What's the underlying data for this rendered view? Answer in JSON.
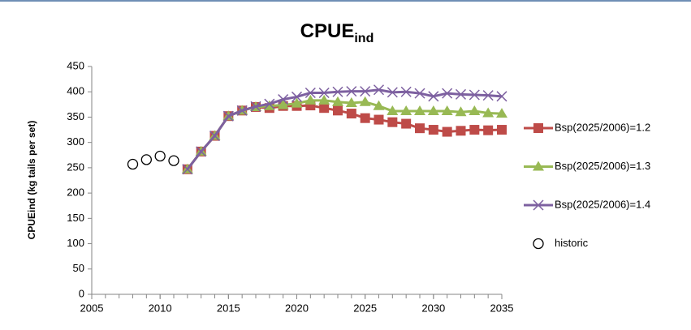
{
  "chart_data": {
    "type": "line",
    "title": "CPUE",
    "title_subscript": "ind",
    "y_label": "CPUEind (kg tails per set)",
    "xlim": [
      2005,
      2035
    ],
    "xticks": [
      2005,
      2010,
      2015,
      2020,
      2025,
      2030,
      2035
    ],
    "ylim": [
      0,
      450
    ],
    "yticks": [
      0,
      50,
      100,
      150,
      200,
      250,
      300,
      350,
      400,
      450
    ],
    "grid": false,
    "legend": "right",
    "series": [
      {
        "name": "Bsp(2025/2006)=1.2",
        "color": "#be4b48",
        "marker": "square",
        "line": true,
        "x": [
          2012,
          2013,
          2014,
          2015,
          2016,
          2017,
          2018,
          2019,
          2020,
          2021,
          2022,
          2023,
          2024,
          2025,
          2026,
          2027,
          2028,
          2029,
          2030,
          2031,
          2032,
          2033,
          2034,
          2035
        ],
        "values": [
          247,
          282,
          313,
          352,
          363,
          370,
          368,
          372,
          372,
          373,
          368,
          363,
          357,
          348,
          345,
          340,
          337,
          328,
          325,
          321,
          323,
          325,
          324,
          325
        ]
      },
      {
        "name": "Bsp(2025/2006)=1.3",
        "color": "#98b954",
        "marker": "triangle",
        "line": true,
        "x": [
          2012,
          2013,
          2014,
          2015,
          2016,
          2017,
          2018,
          2019,
          2020,
          2021,
          2022,
          2023,
          2024,
          2025,
          2026,
          2027,
          2028,
          2029,
          2030,
          2031,
          2032,
          2033,
          2034,
          2035
        ],
        "values": [
          247,
          282,
          313,
          352,
          363,
          370,
          372,
          374,
          377,
          383,
          383,
          380,
          378,
          380,
          372,
          362,
          362,
          362,
          362,
          362,
          360,
          362,
          358,
          357
        ]
      },
      {
        "name": "Bsp(2025/2006)=1.4",
        "color": "#7d60a0",
        "marker": "cross",
        "line": true,
        "x": [
          2012,
          2013,
          2014,
          2015,
          2016,
          2017,
          2018,
          2019,
          2020,
          2021,
          2022,
          2023,
          2024,
          2025,
          2026,
          2027,
          2028,
          2029,
          2030,
          2031,
          2032,
          2033,
          2034,
          2035
        ],
        "values": [
          247,
          282,
          313,
          352,
          363,
          371,
          376,
          385,
          390,
          398,
          398,
          400,
          401,
          401,
          404,
          399,
          400,
          397,
          391,
          397,
          395,
          394,
          393,
          391
        ]
      },
      {
        "name": "historic",
        "color": "#000000",
        "marker": "circle",
        "line": false,
        "x": [
          2008,
          2009,
          2010,
          2011
        ],
        "values": [
          257,
          266,
          273,
          264
        ]
      }
    ]
  }
}
